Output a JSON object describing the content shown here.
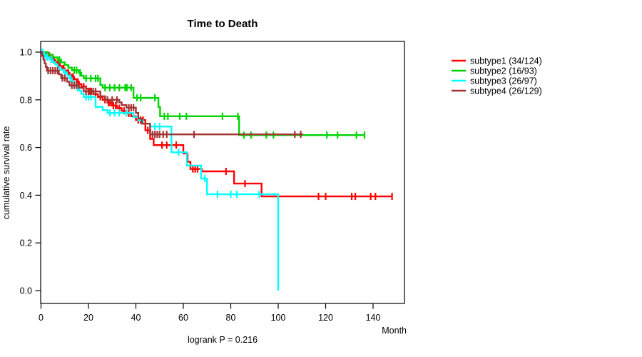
{
  "chart_data": {
    "type": "line",
    "subtype": "kaplan-meier-step",
    "title": "Time to Death",
    "xlabel": "Month",
    "ylabel": "cumulative survival rate",
    "footer": "logrank P = 0.216",
    "xlim": [
      0,
      153
    ],
    "ylim": [
      0,
      1
    ],
    "xticks": [
      0,
      20,
      40,
      60,
      80,
      100,
      120,
      140
    ],
    "yticks": [
      0.0,
      0.2,
      0.4,
      0.6,
      0.8,
      1.0
    ],
    "grid": false,
    "legend_position": "right-outside",
    "frame_color": "#000000",
    "series": [
      {
        "name": "subtype1 (34/124)",
        "color": "#ff0000",
        "end": 148.2,
        "steps": [
          [
            0,
            1.0
          ],
          [
            2,
            0.992
          ],
          [
            3,
            0.984
          ],
          [
            4,
            0.976
          ],
          [
            5,
            0.967
          ],
          [
            6,
            0.959
          ],
          [
            7,
            0.95
          ],
          [
            8,
            0.941
          ],
          [
            9,
            0.932
          ],
          [
            10,
            0.923
          ],
          [
            11,
            0.914
          ],
          [
            12,
            0.905
          ],
          [
            13,
            0.896
          ],
          [
            14,
            0.886
          ],
          [
            15,
            0.876
          ],
          [
            16,
            0.866
          ],
          [
            17,
            0.856
          ],
          [
            19,
            0.846
          ],
          [
            20,
            0.836
          ],
          [
            22,
            0.824
          ],
          [
            24,
            0.812
          ],
          [
            26,
            0.8
          ],
          [
            28,
            0.788
          ],
          [
            30,
            0.776
          ],
          [
            32,
            0.765
          ],
          [
            34,
            0.754
          ],
          [
            36,
            0.743
          ],
          [
            38,
            0.731
          ],
          [
            40,
            0.715
          ],
          [
            44,
            0.672
          ],
          [
            46,
            0.636
          ],
          [
            47.5,
            0.61
          ],
          [
            60,
            0.575
          ],
          [
            61.8,
            0.54
          ],
          [
            63,
            0.51
          ],
          [
            67.8,
            0.5
          ],
          [
            81.4,
            0.449
          ],
          [
            93,
            0.395
          ]
        ],
        "censors": [
          3.5,
          5.5,
          7.5,
          9.5,
          11.5,
          13.5,
          15.5,
          18,
          20.5,
          21.2,
          23,
          25,
          27,
          28.5,
          29.2,
          30.5,
          31.5,
          33,
          35,
          37,
          41,
          42,
          43,
          45,
          51,
          53,
          57,
          64,
          65,
          66,
          78,
          86,
          117,
          120,
          131,
          132.5,
          139,
          141,
          148
        ]
      },
      {
        "name": "subtype2 (16/93)",
        "color": "#00d400",
        "end": 136.7,
        "steps": [
          [
            0,
            1.0
          ],
          [
            3,
            0.989
          ],
          [
            5,
            0.978
          ],
          [
            7,
            0.968
          ],
          [
            8.5,
            0.957
          ],
          [
            10,
            0.946
          ],
          [
            11.5,
            0.935
          ],
          [
            13,
            0.924
          ],
          [
            16,
            0.913
          ],
          [
            17,
            0.901
          ],
          [
            18,
            0.89
          ],
          [
            25,
            0.862
          ],
          [
            26,
            0.851
          ],
          [
            39,
            0.808
          ],
          [
            49.5,
            0.77
          ],
          [
            50.2,
            0.731
          ],
          [
            83.5,
            0.652
          ]
        ],
        "censors": [
          7.8,
          14,
          15,
          16.5,
          19,
          21,
          23,
          24,
          27,
          29,
          31,
          33,
          35.5,
          36.2,
          38,
          40.5,
          42,
          48,
          52,
          53.5,
          58.5,
          61.3,
          76.5,
          83,
          85.5,
          88.5,
          95,
          98,
          120.5,
          125,
          133,
          136.4
        ]
      },
      {
        "name": "subtype3 (26/97)",
        "color": "#00ffff",
        "end": 100,
        "steps": [
          [
            0,
            1.0
          ],
          [
            1,
            0.99
          ],
          [
            2,
            0.979
          ],
          [
            3.5,
            0.969
          ],
          [
            5,
            0.958
          ],
          [
            6,
            0.948
          ],
          [
            7,
            0.937
          ],
          [
            8,
            0.926
          ],
          [
            9.5,
            0.915
          ],
          [
            11,
            0.902
          ],
          [
            12,
            0.89
          ],
          [
            13,
            0.877
          ],
          [
            14,
            0.864
          ],
          [
            15,
            0.851
          ],
          [
            16,
            0.838
          ],
          [
            17,
            0.825
          ],
          [
            18,
            0.812
          ],
          [
            23,
            0.77
          ],
          [
            26,
            0.757
          ],
          [
            28,
            0.745
          ],
          [
            39,
            0.728
          ],
          [
            41,
            0.714
          ],
          [
            43,
            0.7
          ],
          [
            46,
            0.688
          ],
          [
            55,
            0.58
          ],
          [
            61.5,
            0.524
          ],
          [
            67.5,
            0.47
          ],
          [
            70,
            0.404
          ],
          [
            100,
            0.0
          ]
        ],
        "censors": [
          0.6,
          1.3,
          2.6,
          4.2,
          10,
          12.5,
          15.5,
          19,
          20,
          21,
          29,
          31,
          33,
          36,
          48,
          50,
          58,
          69,
          74.4,
          80,
          82.5,
          92
        ]
      },
      {
        "name": "subtype4 (26/129)",
        "color": "#a33232",
        "end": 110.5,
        "steps": [
          [
            0,
            1.0
          ],
          [
            0.5,
            0.984
          ],
          [
            1,
            0.969
          ],
          [
            1.5,
            0.953
          ],
          [
            2,
            0.938
          ],
          [
            2.5,
            0.922
          ],
          [
            7.5,
            0.907
          ],
          [
            8.5,
            0.891
          ],
          [
            11,
            0.876
          ],
          [
            12,
            0.86
          ],
          [
            16,
            0.85
          ],
          [
            18,
            0.835
          ],
          [
            25,
            0.815
          ],
          [
            27,
            0.8
          ],
          [
            33,
            0.789
          ],
          [
            34,
            0.778
          ],
          [
            36,
            0.767
          ],
          [
            40,
            0.745
          ],
          [
            41,
            0.722
          ],
          [
            42.5,
            0.7
          ],
          [
            46,
            0.655
          ]
        ],
        "censors": [
          3,
          4,
          5,
          6,
          7,
          9,
          10,
          13,
          14,
          15,
          19,
          20,
          21,
          22,
          23,
          28,
          30,
          32,
          37,
          38,
          39,
          47,
          48,
          49,
          50,
          51.5,
          53,
          64.5,
          107,
          109.5
        ]
      }
    ]
  }
}
